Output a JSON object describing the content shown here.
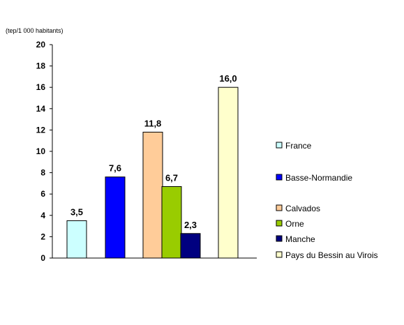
{
  "chart_data": {
    "type": "bar",
    "unit_label": "(tep/1 000 habitants)",
    "ylim": [
      0,
      20
    ],
    "yticks": [
      "0",
      "2",
      "4",
      "6",
      "8",
      "10",
      "12",
      "14",
      "16",
      "18",
      "20"
    ],
    "series": [
      {
        "name": "France",
        "value": 3.5,
        "label": "3,5",
        "color": "#ccffff"
      },
      {
        "name": "Basse-Normandie",
        "value": 7.6,
        "label": "7,6",
        "color": "#0000ff"
      },
      {
        "name": "Calvados",
        "value": 11.8,
        "label": "11,8",
        "color": "#ffcc99"
      },
      {
        "name": "Orne",
        "value": 6.7,
        "label": "6,7",
        "color": "#99cc00"
      },
      {
        "name": "Manche",
        "value": 2.3,
        "label": "2,3",
        "color": "#000080"
      },
      {
        "name": "Pays du Bessin au Virois",
        "value": 16.0,
        "label": "16,0",
        "color": "#ffffcc"
      }
    ],
    "legend_position": "right",
    "grid": false
  }
}
